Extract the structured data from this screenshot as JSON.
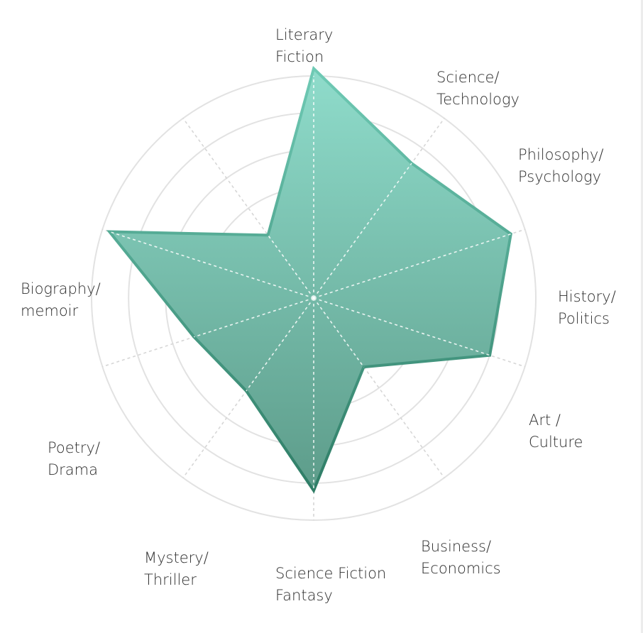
{
  "chart_data": {
    "type": "radar",
    "title": "",
    "categories": [
      [
        "Literary",
        "Fiction"
      ],
      [
        "Science/",
        "Technology"
      ],
      [
        "Philosophy/",
        "Psychology"
      ],
      [
        "History/",
        "Politics"
      ],
      [
        "Art /",
        "Culture"
      ],
      [
        "Business/",
        "Economics"
      ],
      [
        "Science Fiction",
        "Fantasy"
      ],
      [
        "Mystery/",
        "Thriller"
      ],
      [
        "Poetry/",
        "Drama"
      ],
      [
        "Biography/",
        "memoir"
      ]
    ],
    "series": [
      {
        "values": [
          6.2,
          4.5,
          5.6,
          5.0,
          2.3,
          5.2,
          3.1,
          3.4,
          5.8,
          2.1
        ]
      }
    ],
    "rlim": [
      0,
      6
    ],
    "ring_values": [
      2,
      3,
      4,
      5,
      6
    ],
    "grid": true,
    "legend": "none",
    "colors": {
      "fill_top": "#8fdccb",
      "fill_bottom": "#5d9c8a",
      "stroke_top": "#6fcab5",
      "stroke_bottom": "#2f7d66",
      "rings": "#e2e2e2",
      "inner_ring": "#c9c9c9",
      "spokes": "#d6d6d6",
      "spokes_on_fill": "#ffffff",
      "label": "#2d2d2d"
    }
  }
}
